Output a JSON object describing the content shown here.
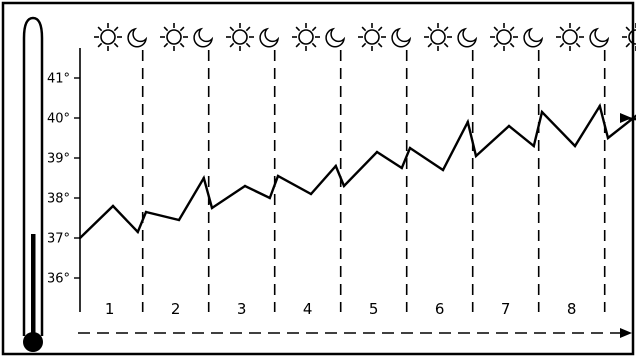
{
  "chart_data": {
    "type": "line",
    "x": [
      0.0,
      0.5,
      0.875,
      1.0,
      1.5,
      1.875,
      2.0,
      2.5,
      2.875,
      3.0,
      3.5,
      3.875,
      4.0,
      4.5,
      4.875,
      5.0,
      5.5,
      5.875,
      6.0,
      6.5,
      6.875,
      7.0,
      7.5,
      7.875,
      8.0,
      8.5,
      8.875,
      9.0,
      9.5
    ],
    "y": [
      37.0,
      37.8,
      37.15,
      37.65,
      37.45,
      38.5,
      37.75,
      38.3,
      38.0,
      38.55,
      38.1,
      38.8,
      38.3,
      39.15,
      38.75,
      39.25,
      38.7,
      39.9,
      39.05,
      39.8,
      39.3,
      40.15,
      39.3,
      40.3,
      39.5,
      40.15,
      39.6,
      40.3,
      39.8
    ],
    "yticks": [
      "36°",
      "37°",
      "38°",
      "39°",
      "40°",
      "41°"
    ],
    "ylim": [
      35.3,
      41.6
    ],
    "day_labels": [
      "1",
      "2",
      "3",
      "4",
      "5",
      "6",
      "7",
      "8"
    ],
    "day_night_icons": [
      "sun-icon",
      "moon-icon",
      "sun-icon",
      "moon-icon",
      "sun-icon",
      "moon-icon",
      "sun-icon",
      "moon-icon",
      "sun-icon",
      "moon-icon",
      "sun-icon",
      "moon-icon",
      "sun-icon",
      "moon-icon",
      "sun-icon",
      "moon-icon",
      "sun-icon"
    ],
    "grid": false,
    "colors": {
      "line": "#000000",
      "background": "#ffffff"
    }
  }
}
